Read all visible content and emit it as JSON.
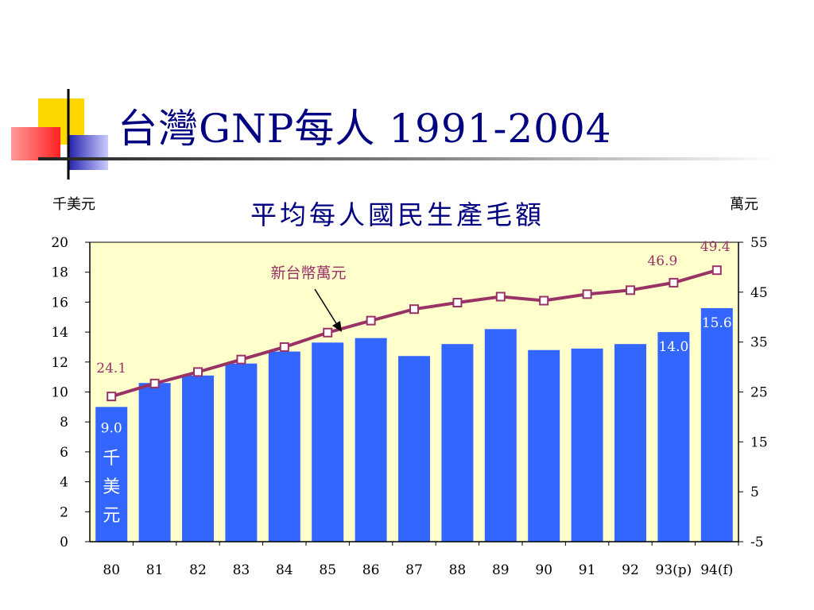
{
  "slide": {
    "title": "台灣GNP每人 1991-2004"
  },
  "colors": {
    "title": "#000080",
    "plot_background": "#ffffcc",
    "bar": "#3366ff",
    "line": "#993366",
    "marker_fill": "#ffffff",
    "deco_yellow": "#ffd700",
    "deco_red": "#ff3333",
    "deco_blue": "#3333cc"
  },
  "chart_data": {
    "type": "bar",
    "title": "平均每人國民生產毛額",
    "left_axis_unit": "千美元",
    "right_axis_unit": "萬元",
    "categories": [
      "80",
      "81",
      "82",
      "83",
      "84",
      "85",
      "86",
      "87",
      "88",
      "89",
      "90",
      "91",
      "92",
      "93(p)",
      "94(f)"
    ],
    "series": [
      {
        "name": "千美元",
        "type": "bar",
        "axis": "left",
        "values": [
          9.0,
          10.6,
          11.1,
          11.9,
          12.7,
          13.3,
          13.6,
          12.4,
          13.2,
          14.2,
          12.8,
          12.9,
          13.2,
          14.0,
          15.6
        ]
      },
      {
        "name": "新台幣萬元",
        "type": "line",
        "axis": "right",
        "values": [
          24.1,
          26.7,
          29.0,
          31.5,
          34.0,
          36.9,
          39.3,
          41.6,
          42.9,
          44.1,
          43.3,
          44.6,
          45.4,
          46.9,
          49.4
        ]
      }
    ],
    "left_axis": {
      "range": [
        0,
        20
      ],
      "ticks": [
        "0",
        "2",
        "4",
        "6",
        "8",
        "10",
        "12",
        "14",
        "16",
        "18",
        "20"
      ]
    },
    "right_axis": {
      "range": [
        -5,
        55
      ],
      "ticks": [
        "-5",
        "5",
        "15",
        "25",
        "35",
        "45",
        "55"
      ]
    },
    "bar_labels": [
      {
        "index": 0,
        "text": "9.0"
      },
      {
        "index": 13,
        "text": "14.0"
      },
      {
        "index": 14,
        "text": "15.6"
      }
    ],
    "first_bar_unit_chars": [
      "千",
      "美",
      "元"
    ],
    "line_labels": [
      {
        "index": 0,
        "text": "24.1"
      },
      {
        "index": 13,
        "text": "46.9"
      },
      {
        "index": 14,
        "text": "49.4"
      }
    ],
    "annotation": "新台幣萬元",
    "legend": "none",
    "grid": false
  }
}
